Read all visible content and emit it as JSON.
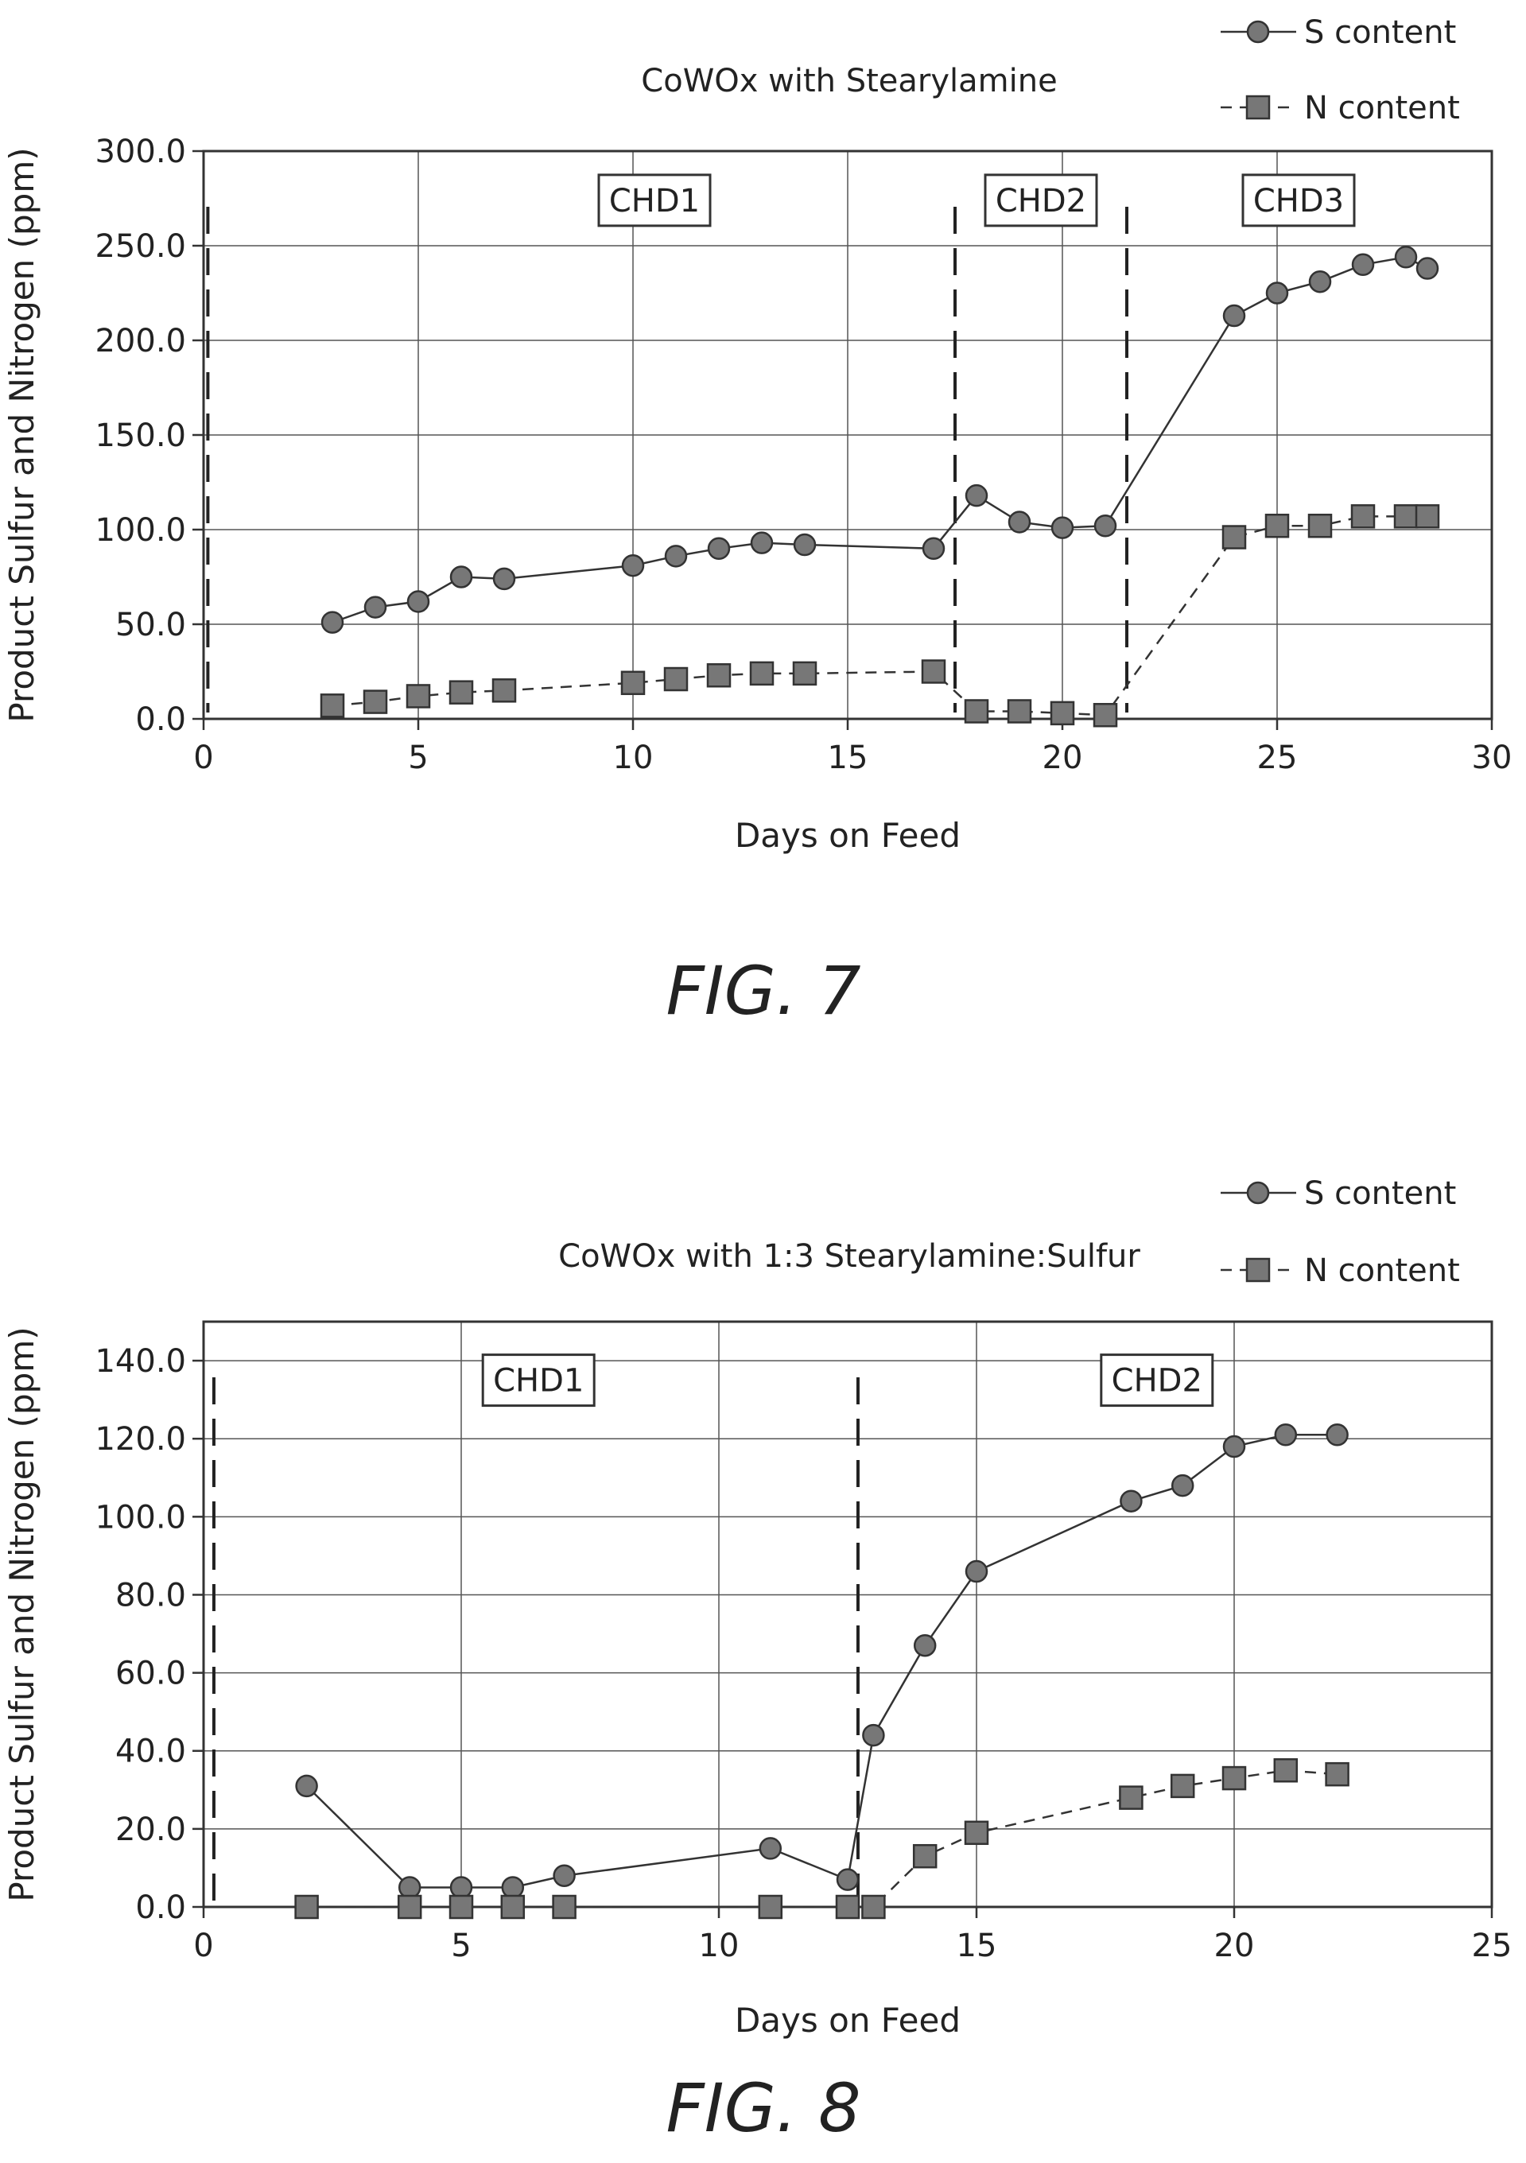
{
  "chart_data": [
    {
      "type": "line",
      "title": "CoWOx with Stearylamine",
      "xlabel": "Days on Feed",
      "ylabel": "Product Sulfur and Nitrogen (ppm)",
      "xlim": [
        0,
        30
      ],
      "ylim": [
        0,
        300
      ],
      "x_ticks": [
        0,
        5,
        10,
        15,
        20,
        25,
        30
      ],
      "y_ticks": [
        0,
        50,
        100,
        150,
        200,
        250,
        300
      ],
      "x_tick_labels": [
        "0",
        "5",
        "10",
        "15",
        "20",
        "25",
        "30"
      ],
      "y_tick_labels": [
        "0.0",
        "50.0",
        "100.0",
        "150.0",
        "200.0",
        "250.0",
        "300.0"
      ],
      "grid": true,
      "legend_position": "top-right",
      "series": [
        {
          "name": "S content",
          "marker": "circle",
          "line": "solid",
          "x": [
            3,
            4,
            5,
            6,
            7,
            10,
            11,
            12,
            13,
            14,
            17,
            18,
            19,
            20,
            21,
            24,
            25,
            26,
            27,
            28,
            28.5
          ],
          "values": [
            51,
            59,
            62,
            75,
            74,
            81,
            86,
            90,
            93,
            92,
            90,
            118,
            104,
            101,
            102,
            213,
            225,
            231,
            240,
            244,
            238
          ]
        },
        {
          "name": "N content",
          "marker": "square",
          "line": "dashed",
          "x": [
            3,
            4,
            5,
            6,
            7,
            10,
            11,
            12,
            13,
            14,
            17,
            18,
            19,
            20,
            21,
            24,
            25,
            26,
            27,
            28,
            28.5
          ],
          "values": [
            7,
            9,
            12,
            14,
            15,
            19,
            21,
            23,
            24,
            24,
            25,
            4,
            4,
            3,
            2,
            96,
            102,
            102,
            107,
            107,
            107
          ]
        }
      ],
      "annotations": [
        {
          "text": "CHD1",
          "x": 10.5,
          "y": 274
        },
        {
          "text": "CHD2",
          "x": 19.5,
          "y": 274
        },
        {
          "text": "CHD3",
          "x": 25.5,
          "y": 274
        }
      ],
      "vlines": [
        0.1,
        17.5,
        21.5
      ],
      "figure_label": "FIG. 7"
    },
    {
      "type": "line",
      "title": "CoWOx with 1:3 Stearylamine:Sulfur",
      "xlabel": "Days on Feed",
      "ylabel": "Product Sulfur and Nitrogen (ppm)",
      "xlim": [
        0,
        25
      ],
      "ylim": [
        0,
        150
      ],
      "x_ticks": [
        0,
        5,
        10,
        15,
        20,
        25
      ],
      "y_ticks": [
        0,
        20,
        40,
        60,
        80,
        100,
        120,
        140
      ],
      "x_tick_labels": [
        "0",
        "5",
        "10",
        "15",
        "20",
        "25"
      ],
      "y_tick_labels": [
        "0.0",
        "20.0",
        "40.0",
        "60.0",
        "80.0",
        "100.0",
        "120.0",
        "140.0"
      ],
      "grid": true,
      "legend_position": "top-right",
      "series": [
        {
          "name": "S content",
          "marker": "circle",
          "line": "solid",
          "x": [
            2,
            4,
            5,
            6,
            7,
            11,
            12.5,
            13,
            14,
            15,
            18,
            19,
            20,
            21,
            22
          ],
          "values": [
            31,
            5,
            5,
            5,
            8,
            15,
            7,
            44,
            67,
            86,
            104,
            108,
            118,
            121,
            121
          ]
        },
        {
          "name": "N content",
          "marker": "square",
          "line": "dashed",
          "x": [
            2,
            4,
            5,
            6,
            7,
            11,
            12.5,
            13,
            14,
            15,
            18,
            19,
            20,
            21,
            22
          ],
          "values": [
            0,
            0,
            0,
            0,
            0,
            0,
            0,
            0,
            13,
            19,
            28,
            31,
            33,
            35,
            34
          ]
        }
      ],
      "annotations": [
        {
          "text": "CHD1",
          "x": 6.5,
          "y": 135
        },
        {
          "text": "CHD2",
          "x": 18.5,
          "y": 135
        }
      ],
      "vlines": [
        0.2,
        12.7
      ],
      "figure_label": "FIG. 8"
    }
  ]
}
